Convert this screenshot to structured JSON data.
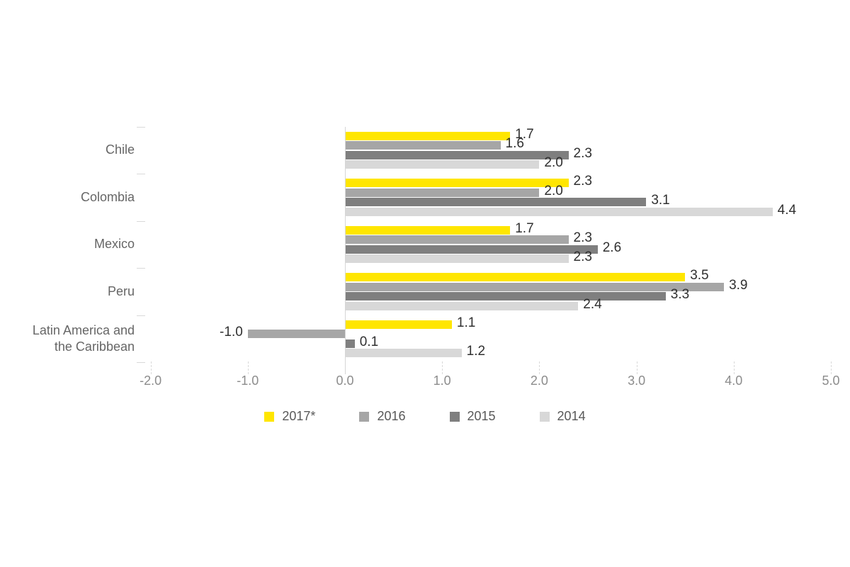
{
  "chart_data": {
    "type": "bar",
    "orientation": "horizontal",
    "title": "",
    "categories": [
      "Chile",
      "Colombia",
      "Mexico",
      "Peru",
      "Latin America and\nthe Caribbean"
    ],
    "series": [
      {
        "name": "2017*",
        "color": "#FFE600",
        "values": [
          1.7,
          2.3,
          1.7,
          3.5,
          1.1
        ]
      },
      {
        "name": "2016",
        "color": "#A6A6A6",
        "values": [
          1.6,
          2.0,
          2.3,
          3.9,
          -1.0
        ]
      },
      {
        "name": "2015",
        "color": "#7F7F7F",
        "values": [
          2.3,
          3.1,
          2.6,
          3.3,
          0.1
        ]
      },
      {
        "name": "2014",
        "color": "#D8D8D8",
        "values": [
          2.0,
          4.4,
          2.3,
          2.4,
          1.2
        ]
      }
    ],
    "xlim": [
      -2.0,
      5.0
    ],
    "xticks": [
      -2.0,
      -1.0,
      0.0,
      1.0,
      2.0,
      3.0,
      4.0,
      5.0
    ],
    "xtick_labels": [
      "-2.0",
      "-1.0",
      "0.0",
      "1.0",
      "2.0",
      "3.0",
      "4.0",
      "5.0"
    ],
    "value_label_decimals": 1,
    "legend_position": "bottom",
    "legend_entries": [
      "2017*",
      "2016",
      "2015",
      "2014"
    ],
    "grid": false,
    "colors": {
      "bar_2017": "#FFE600",
      "bar_2016": "#A6A6A6",
      "bar_2015": "#7F7F7F",
      "bar_2014": "#D8D8D8",
      "axis_line": "#d9d9d9",
      "value_label_text": "#303030",
      "category_text": "#666666",
      "axis_text": "#8c8c8c",
      "legend_text": "#595959"
    }
  }
}
